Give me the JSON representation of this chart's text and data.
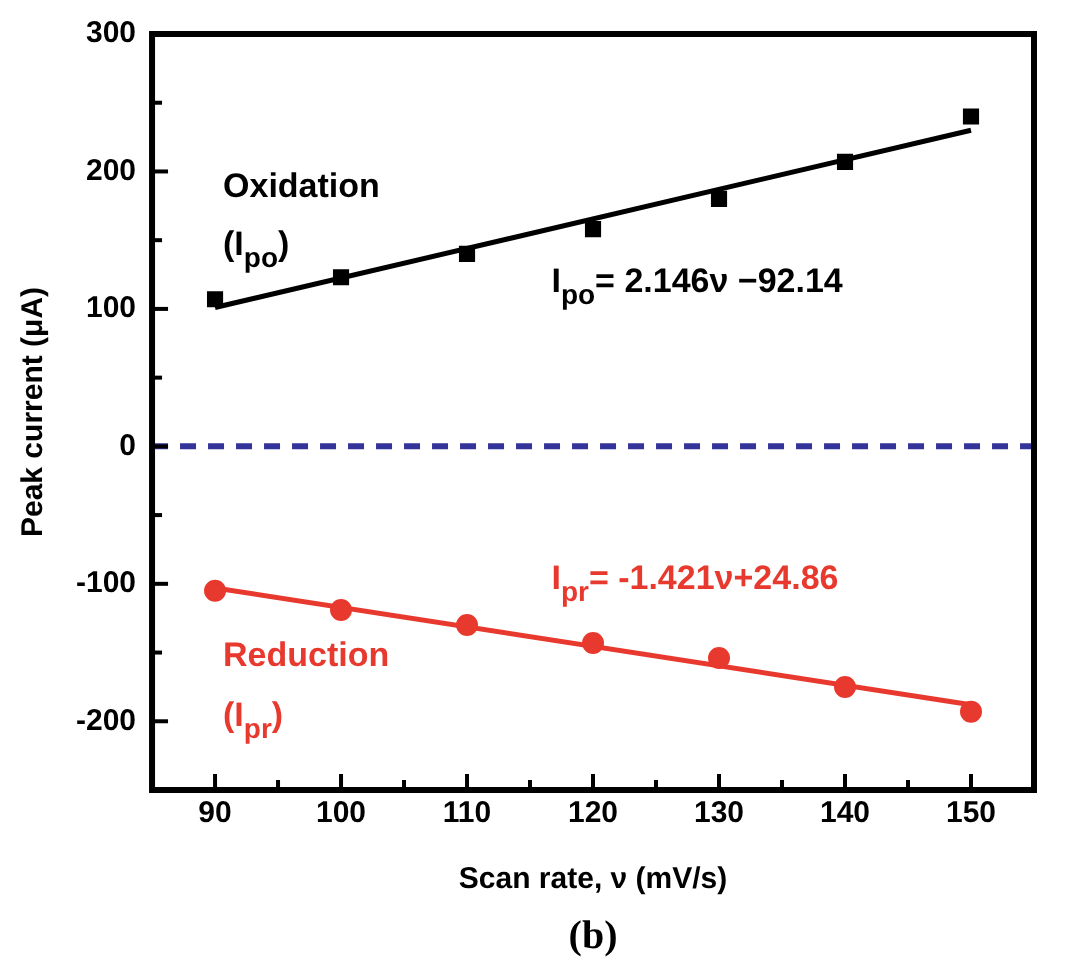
{
  "chart_data": {
    "type": "scatter",
    "xlabel": "Scan rate, ν (mV/s)",
    "ylabel": "Peak current (μA)",
    "xlim": [
      85,
      155
    ],
    "xticks": [
      90,
      {
        "value": 95,
        "label": null
      },
      100,
      {
        "value": 105,
        "label": null
      },
      110,
      {
        "value": 115,
        "label": null
      },
      120,
      {
        "value": 125,
        "label": null
      },
      130,
      {
        "value": 135,
        "label": null
      },
      140,
      {
        "value": 145,
        "label": null
      },
      150
    ],
    "ylim": [
      -250,
      300
    ],
    "yticks": [
      {
        "value": -250,
        "label": null
      },
      -200,
      {
        "value": -150,
        "label": null
      },
      -100,
      {
        "value": -50,
        "label": null
      },
      0,
      {
        "value": 50,
        "label": null
      },
      100,
      {
        "value": 150,
        "label": null
      },
      200,
      {
        "value": 250,
        "label": null
      },
      300
    ],
    "grid": false,
    "legend": false,
    "series": [
      {
        "type": "scatter",
        "color": "#000000",
        "marker": "square",
        "x": [
          90,
          100,
          110,
          120,
          130,
          140,
          150
        ],
        "values": [
          107,
          123,
          140,
          158,
          180,
          207,
          240
        ]
      },
      {
        "type": "line",
        "name": "I$_{po}$= 2.146ν −92.14",
        "color": "#000000",
        "marker": "none",
        "x": [
          90,
          150
        ],
        "values": [
          101,
          230
        ]
      },
      {
        "type": "scatter",
        "color": "#e8392e",
        "marker": "circle",
        "x": [
          90,
          100,
          110,
          120,
          130,
          140,
          150
        ],
        "values": [
          -105,
          -119,
          -130,
          -143,
          -154,
          -175,
          -193
        ]
      },
      {
        "type": "line",
        "name": "I$_{pr}$= -1.421ν+24.86",
        "color": "#e8392e",
        "marker": "none",
        "x": [
          90,
          150
        ],
        "values": [
          -103,
          -188
        ]
      }
    ],
    "ref_lines": [
      {
        "axis": "y",
        "value": 0,
        "color": "#333399",
        "line_style": "dashed"
      }
    ],
    "annotations": [
      "Oxidation",
      "(I$_{po}$)",
      "Reduction",
      "(I$_{pr}$)",
      "(b)"
    ]
  }
}
